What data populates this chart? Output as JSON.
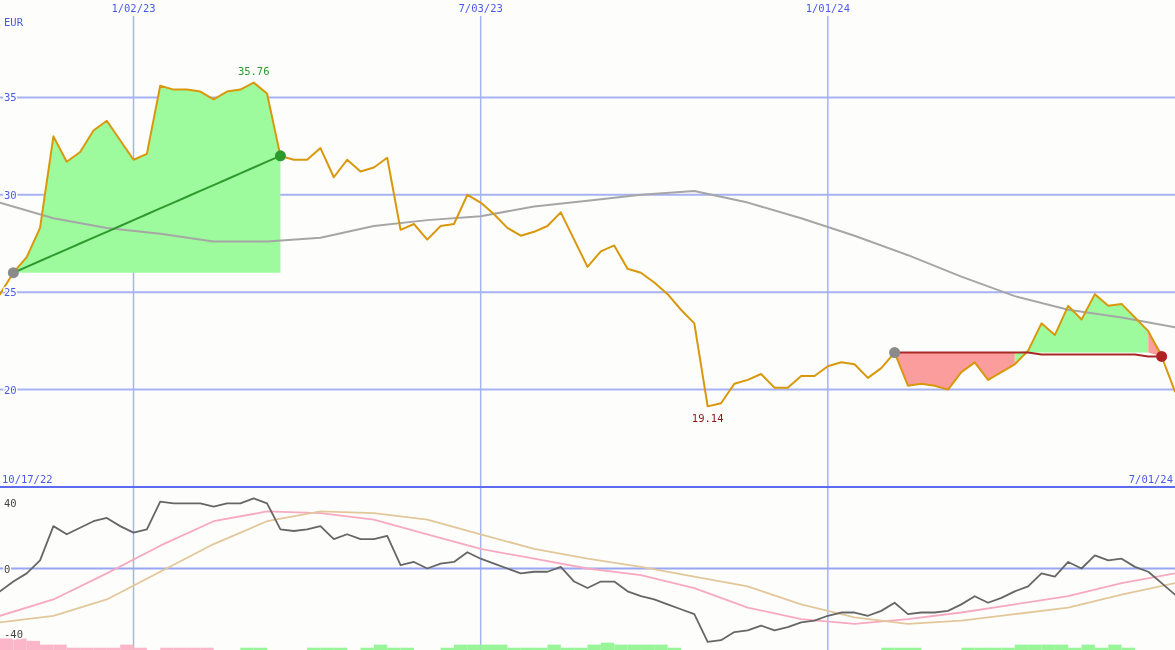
{
  "chart_data": [
    {
      "type": "line",
      "ylabel": "EUR",
      "x": [
        "2022-10-24",
        "2022-10-31",
        "2022-11-07",
        "2022-11-14",
        "2022-11-21",
        "2022-11-28",
        "2022-12-05",
        "2022-12-12",
        "2022-12-19",
        "2022-12-26",
        "2023-01-02",
        "2023-01-09",
        "2023-01-16",
        "2023-01-23",
        "2023-01-30",
        "2023-02-06",
        "2023-02-13",
        "2023-02-20",
        "2023-02-27",
        "2023-03-06",
        "2023-03-13",
        "2023-03-20",
        "2023-03-27",
        "2023-04-03",
        "2023-04-10",
        "2023-04-17",
        "2023-04-24",
        "2023-05-01",
        "2023-05-08",
        "2023-05-15",
        "2023-05-22",
        "2023-05-29",
        "2023-06-05",
        "2023-06-12",
        "2023-06-19",
        "2023-06-26",
        "2023-07-03",
        "2023-07-10",
        "2023-07-17",
        "2023-07-24",
        "2023-07-31",
        "2023-08-07",
        "2023-08-14",
        "2023-08-21",
        "2023-08-28",
        "2023-09-04",
        "2023-09-11",
        "2023-09-18",
        "2023-09-25",
        "2023-10-02",
        "2023-10-09",
        "2023-10-16",
        "2023-10-23",
        "2023-10-30",
        "2023-11-06",
        "2023-11-13",
        "2023-11-20",
        "2023-11-27",
        "2023-12-04",
        "2023-12-11",
        "2023-12-18",
        "2023-12-25",
        "2024-01-01",
        "2024-01-08",
        "2024-01-15",
        "2024-01-22",
        "2024-01-29",
        "2024-02-05",
        "2024-02-12",
        "2024-02-19",
        "2024-02-26",
        "2024-03-04",
        "2024-03-11",
        "2024-03-18",
        "2024-03-25",
        "2024-04-01",
        "2024-04-08",
        "2024-04-15",
        "2024-04-22",
        "2024-04-29",
        "2024-05-06",
        "2024-05-13",
        "2024-05-20",
        "2024-05-27",
        "2024-06-03",
        "2024-06-10",
        "2024-06-17",
        "2024-06-24",
        "2024-07-01"
      ],
      "xlim": [
        "2022-10-24",
        "2024-07-01"
      ],
      "ylim": [
        15,
        40
      ],
      "xticks": [
        {
          "value": "2023-01-02",
          "label": "1/02/23"
        },
        {
          "value": "2023-07-03",
          "label": "7/03/23"
        },
        {
          "value": "2024-01-01",
          "label": "1/01/24"
        }
      ],
      "yticks": [
        20,
        25,
        30,
        35
      ],
      "grid": true,
      "annotations": [
        {
          "text": "35.76",
          "x": "2023-03-06",
          "y": 35.76
        },
        {
          "text": "19.14",
          "x": "2023-10-30",
          "y": 19.14
        },
        "10/17/22",
        "7/01/24"
      ],
      "series": [
        {
          "type": "line",
          "color": "#a6a6a6",
          "x": [
            "2022-10-24",
            "2022-11-21",
            "2022-12-19",
            "2023-01-16",
            "2023-02-13",
            "2023-03-13",
            "2023-04-10",
            "2023-05-08",
            "2023-06-05",
            "2023-07-03",
            "2023-07-31",
            "2023-08-28",
            "2023-09-25",
            "2023-10-23",
            "2023-11-20",
            "2023-12-18",
            "2024-01-15",
            "2024-02-12",
            "2024-03-11",
            "2024-04-08",
            "2024-05-06",
            "2024-06-03",
            "2024-07-01"
          ],
          "values": [
            29.6,
            28.8,
            28.3,
            28.0,
            27.6,
            27.6,
            27.8,
            28.4,
            28.7,
            28.9,
            29.4,
            29.7,
            30.0,
            30.2,
            29.6,
            28.8,
            27.9,
            26.9,
            25.8,
            24.8,
            24.1,
            23.7,
            23.2
          ]
        },
        {
          "type": "line",
          "color": "#d9980b",
          "values": [
            24.9,
            26.0,
            26.8,
            28.3,
            33.0,
            31.7,
            32.2,
            33.3,
            33.8,
            32.8,
            31.8,
            32.1,
            35.6,
            35.4,
            35.4,
            35.3,
            34.9,
            35.3,
            35.4,
            35.76,
            35.2,
            32.0,
            31.8,
            31.8,
            32.4,
            30.9,
            31.8,
            31.2,
            31.4,
            31.9,
            28.2,
            28.5,
            27.7,
            28.4,
            28.5,
            30.0,
            29.6,
            29.0,
            28.3,
            27.9,
            28.1,
            28.4,
            29.1,
            27.7,
            26.3,
            27.1,
            27.4,
            26.2,
            26.0,
            25.5,
            24.9,
            24.1,
            23.4,
            19.14,
            19.3,
            20.3,
            20.5,
            20.8,
            20.1,
            20.1,
            20.7,
            20.7,
            21.2,
            21.4,
            21.3,
            20.6,
            21.1,
            21.9,
            20.2,
            20.3,
            20.2,
            20.0,
            20.9,
            21.4,
            20.5,
            20.9,
            21.3,
            22.0,
            23.4,
            22.8,
            24.3,
            23.6,
            24.9,
            24.3,
            24.4,
            23.7,
            23.0,
            21.7,
            19.9
          ]
        },
        {
          "type": "line",
          "color": "#2e9a2e",
          "x": [
            "2022-10-31",
            "2022-11-07",
            "2022-11-14",
            "2022-11-21",
            "2022-11-28",
            "2022-12-05",
            "2022-12-12",
            "2022-12-19",
            "2022-12-26",
            "2023-01-02",
            "2023-01-09",
            "2023-01-16",
            "2023-01-23",
            "2023-01-30",
            "2023-02-06",
            "2023-02-13",
            "2023-02-20",
            "2023-02-27",
            "2023-03-06",
            "2023-03-13",
            "2023-03-20",
            "2023-03-27",
            "2024-04-08",
            "2024-04-15",
            "2024-04-22",
            "2024-04-29",
            "2024-05-06",
            "2024-05-13",
            "2024-05-20",
            "2024-05-27",
            "2024-06-03",
            "2024-06-10",
            "2024-06-17"
          ],
          "values": [
            26.0,
            26.3,
            26.6,
            26.9,
            27.2,
            27.5,
            27.8,
            28.1,
            28.4,
            28.7,
            29.0,
            29.3,
            29.6,
            29.9,
            30.2,
            30.5,
            30.8,
            31.1,
            31.4,
            31.7,
            32.0,
            null,
            null,
            null,
            null,
            null,
            null,
            null,
            null,
            null,
            null,
            null,
            null
          ],
          "lower": [
            26.0,
            26.0,
            26.0,
            26.0,
            26.0,
            26.0,
            26.0,
            26.0,
            26.0,
            26.0,
            26.0,
            26.0,
            26.0,
            26.0,
            26.0,
            26.0,
            26.0,
            26.0,
            26.0,
            26.0,
            26.0,
            null,
            21.3,
            21.9,
            21.9,
            21.9,
            21.9,
            21.9,
            21.9,
            21.9,
            21.9,
            21.9,
            21.9
          ],
          "upper": [
            26.0,
            26.8,
            28.3,
            33.0,
            31.7,
            32.2,
            33.3,
            33.8,
            32.8,
            31.8,
            32.1,
            35.6,
            35.4,
            35.4,
            35.3,
            34.9,
            35.3,
            35.4,
            35.76,
            35.2,
            32.0,
            null,
            21.9,
            22.0,
            23.4,
            22.8,
            24.3,
            23.6,
            24.9,
            24.3,
            24.4,
            23.7,
            23.0
          ]
        },
        {
          "type": "line",
          "color": "#a82828",
          "x": [
            "2024-02-05",
            "2024-02-12",
            "2024-02-19",
            "2024-02-26",
            "2024-03-04",
            "2024-03-11",
            "2024-03-18",
            "2024-03-25",
            "2024-04-01",
            "2024-04-08",
            "2024-04-15",
            "2024-04-22",
            "2024-04-29",
            "2024-05-06",
            "2024-05-13",
            "2024-05-20",
            "2024-05-27",
            "2024-06-03",
            "2024-06-10",
            "2024-06-17",
            "2024-06-24"
          ],
          "values": [
            21.9,
            21.9,
            21.9,
            21.9,
            21.9,
            21.9,
            21.9,
            21.9,
            21.9,
            21.9,
            21.9,
            21.8,
            21.8,
            21.8,
            21.8,
            21.8,
            21.8,
            21.8,
            21.8,
            21.7,
            21.7
          ],
          "lower": [
            21.9,
            20.2,
            20.3,
            20.2,
            20.0,
            20.9,
            21.4,
            20.5,
            20.9,
            21.3,
            null,
            null,
            null,
            null,
            null,
            null,
            null,
            null,
            null,
            21.9,
            21.7
          ],
          "upper": [
            21.9,
            21.9,
            21.9,
            21.9,
            21.9,
            21.9,
            21.9,
            21.9,
            21.9,
            21.9,
            null,
            null,
            null,
            null,
            null,
            null,
            null,
            null,
            null,
            23.0,
            21.9
          ]
        },
        {
          "type": "scatter",
          "marker": "circle",
          "x": [
            "2022-10-31",
            "2023-03-20",
            "2024-02-05",
            "2024-06-24"
          ],
          "values": [
            26.0,
            32.0,
            21.9,
            21.7
          ],
          "colors": [
            "#8a8a8a",
            "#2c9a2c",
            "#8a8a8a",
            "#b02222"
          ]
        }
      ]
    },
    {
      "type": "line",
      "x": [
        "2022-10-24",
        "2022-10-31",
        "2022-11-07",
        "2022-11-14",
        "2022-11-21",
        "2022-11-28",
        "2022-12-05",
        "2022-12-12",
        "2022-12-19",
        "2022-12-26",
        "2023-01-02",
        "2023-01-09",
        "2023-01-16",
        "2023-01-23",
        "2023-01-30",
        "2023-02-06",
        "2023-02-13",
        "2023-02-20",
        "2023-02-27",
        "2023-03-06",
        "2023-03-13",
        "2023-03-20",
        "2023-03-27",
        "2023-04-03",
        "2023-04-10",
        "2023-04-17",
        "2023-04-24",
        "2023-05-01",
        "2023-05-08",
        "2023-05-15",
        "2023-05-22",
        "2023-05-29",
        "2023-06-05",
        "2023-06-12",
        "2023-06-19",
        "2023-06-26",
        "2023-07-03",
        "2023-07-10",
        "2023-07-17",
        "2023-07-24",
        "2023-07-31",
        "2023-08-07",
        "2023-08-14",
        "2023-08-21",
        "2023-08-28",
        "2023-09-04",
        "2023-09-11",
        "2023-09-18",
        "2023-09-25",
        "2023-10-02",
        "2023-10-09",
        "2023-10-16",
        "2023-10-23",
        "2023-10-30",
        "2023-11-06",
        "2023-11-13",
        "2023-11-20",
        "2023-11-27",
        "2023-12-04",
        "2023-12-11",
        "2023-12-18",
        "2023-12-25",
        "2024-01-01",
        "2024-01-08",
        "2024-01-15",
        "2024-01-22",
        "2024-01-29",
        "2024-02-05",
        "2024-02-12",
        "2024-02-19",
        "2024-02-26",
        "2024-03-04",
        "2024-03-11",
        "2024-03-18",
        "2024-03-25",
        "2024-04-01",
        "2024-04-08",
        "2024-04-15",
        "2024-04-22",
        "2024-04-29",
        "2024-05-06",
        "2024-05-13",
        "2024-05-20",
        "2024-05-27",
        "2024-06-03",
        "2024-06-10",
        "2024-06-17",
        "2024-06-24",
        "2024-07-01"
      ],
      "xlim": [
        "2022-10-24",
        "2024-07-01"
      ],
      "ylim": [
        -50,
        50
      ],
      "xticks": [
        {
          "value": "2023-01-02",
          "label": null
        },
        {
          "value": "2023-07-03",
          "label": null
        },
        {
          "value": "2024-01-01",
          "label": null
        }
      ],
      "yticks": [
        -40,
        0,
        40
      ],
      "grid": "x",
      "tick_labels": "y",
      "ref_lines": [
        {
          "axis": "y",
          "value": 0,
          "color": "#9aa6f2"
        }
      ],
      "series": [
        {
          "type": "bar",
          "x": [
            "2022-10-27T12:00",
            "2022-11-03T12:00",
            "2022-11-10T12:00",
            "2022-11-17T12:00",
            "2022-11-24T12:00",
            "2022-12-01T12:00",
            "2022-12-08T12:00",
            "2022-12-15T12:00",
            "2022-12-22T12:00",
            "2022-12-29T12:00",
            "2023-01-05T12:00",
            "2023-01-19T12:00",
            "2023-01-26T12:00",
            "2023-02-02T12:00",
            "2023-02-09T12:00",
            "2023-03-02T12:00",
            "2023-03-09T12:00",
            "2023-04-06T12:00",
            "2023-04-13T12:00",
            "2023-04-20T12:00",
            "2023-05-04T12:00",
            "2023-05-11T12:00",
            "2023-05-18T12:00",
            "2023-05-25T12:00",
            "2023-06-15T12:00",
            "2023-06-22T12:00",
            "2023-06-29T12:00",
            "2023-07-06T12:00",
            "2023-07-13T12:00",
            "2023-07-20T12:00",
            "2023-07-27T12:00",
            "2023-08-03T12:00",
            "2023-08-10T12:00",
            "2023-08-17T12:00",
            "2023-08-24T12:00",
            "2023-08-31T12:00",
            "2023-09-07T12:00",
            "2023-09-14T12:00",
            "2023-09-21T12:00",
            "2023-09-28T12:00",
            "2023-10-05T12:00",
            "2023-10-12T12:00",
            "2024-02-01T12:00",
            "2024-02-08T12:00",
            "2024-02-15T12:00",
            "2024-03-14T12:00",
            "2024-03-21T12:00",
            "2024-03-28T12:00",
            "2024-04-04T12:00",
            "2024-04-11T12:00",
            "2024-04-18T12:00",
            "2024-04-25T12:00",
            "2024-05-02T12:00",
            "2024-05-09T12:00",
            "2024-05-16T12:00",
            "2024-05-23T12:00",
            "2024-05-30T12:00",
            "2024-06-06T12:00"
          ],
          "values": [
            7.1,
            7.1,
            5.6,
            3.3,
            3.3,
            1.4,
            1.4,
            1.4,
            1.4,
            3.3,
            1.4,
            1.4,
            1.4,
            1.4,
            1.4,
            1.4,
            1.4,
            1.4,
            1.4,
            1.4,
            1.4,
            3.3,
            1.4,
            1.4,
            1.4,
            3.3,
            3.3,
            3.3,
            3.3,
            1.4,
            1.4,
            1.4,
            3.3,
            1.4,
            1.4,
            3.3,
            4.5,
            3.3,
            3.3,
            3.3,
            3.3,
            1.4,
            1.4,
            1.4,
            1.4,
            1.4,
            1.4,
            1.4,
            1.4,
            3.3,
            3.3,
            3.3,
            3.3,
            1.4,
            3.3,
            1.4,
            3.3,
            1.4
          ],
          "base": [
            -50,
            -50,
            -50,
            -50,
            -50,
            -50,
            -50,
            -50,
            -50,
            -50,
            -50,
            -50,
            -50,
            -50,
            -50,
            -50,
            -50,
            -50,
            -50,
            -50,
            -50,
            -50,
            -50,
            -50,
            -50,
            -50,
            -50,
            -50,
            -50,
            -50,
            -50,
            -50,
            -50,
            -50,
            -50,
            -50,
            -50,
            -50,
            -50,
            -50,
            -50,
            -50,
            -50,
            -50,
            -50,
            -50,
            -50,
            -50,
            -50,
            -50,
            -50,
            -50,
            -50,
            -50,
            -50,
            -50,
            -50,
            -50
          ],
          "colors": [
            "#fbb6ca",
            "#fbb6ca",
            "#fbb6ca",
            "#fbb6ca",
            "#fbb6ca",
            "#fbb6ca",
            "#fbb6ca",
            "#fbb6ca",
            "#fbb6ca",
            "#fbb6ca",
            "#fbb6ca",
            "#fbb6ca",
            "#fbb6ca",
            "#fbb6ca",
            "#fbb6ca",
            "#98f598",
            "#98f598",
            "#98f598",
            "#98f598",
            "#98f598",
            "#98f598",
            "#98f598",
            "#98f598",
            "#98f598",
            "#98f598",
            "#98f598",
            "#98f598",
            "#98f598",
            "#98f598",
            "#98f598",
            "#98f598",
            "#98f598",
            "#98f598",
            "#98f598",
            "#98f598",
            "#98f598",
            "#98f598",
            "#98f598",
            "#98f598",
            "#98f598",
            "#98f598",
            "#98f598",
            "#98f598",
            "#98f598",
            "#98f598",
            "#98f598",
            "#98f598",
            "#98f598",
            "#98f598",
            "#98f598",
            "#98f598",
            "#98f598",
            "#98f598",
            "#98f598",
            "#98f598",
            "#98f598",
            "#98f598",
            "#98f598"
          ]
        },
        {
          "color": "#f7a8c2",
          "x": [
            "2022-10-24",
            "2022-11-21",
            "2022-12-19",
            "2023-01-16",
            "2023-02-13",
            "2023-03-13",
            "2023-04-10",
            "2023-05-08",
            "2023-06-05",
            "2023-07-03",
            "2023-07-31",
            "2023-08-28",
            "2023-09-25",
            "2023-10-23",
            "2023-11-20",
            "2023-12-18",
            "2024-01-15",
            "2024-02-12",
            "2024-03-11",
            "2024-04-08",
            "2024-05-06",
            "2024-06-03",
            "2024-07-01"
          ],
          "values": [
            -29,
            -19,
            -3,
            14,
            29,
            35,
            34,
            30,
            21,
            12,
            6,
            0,
            -4,
            -12,
            -24,
            -31,
            -34,
            -31,
            -27,
            -22,
            -17,
            -9,
            -3
          ]
        },
        {
          "color": "#e2c79b",
          "x": [
            "2022-10-24",
            "2022-11-21",
            "2022-12-19",
            "2023-01-16",
            "2023-02-13",
            "2023-03-13",
            "2023-04-10",
            "2023-05-08",
            "2023-06-05",
            "2023-07-03",
            "2023-07-31",
            "2023-08-28",
            "2023-09-25",
            "2023-10-23",
            "2023-11-20",
            "2023-12-18",
            "2024-01-15",
            "2024-02-12",
            "2024-03-11",
            "2024-04-08",
            "2024-05-06",
            "2024-06-03",
            "2024-07-01"
          ],
          "values": [
            -33,
            -29,
            -19,
            -2,
            15,
            29,
            35,
            34,
            30,
            21,
            12,
            6,
            1,
            -5,
            -11,
            -22,
            -30,
            -34,
            -32,
            -28,
            -24,
            -16,
            -9
          ]
        },
        {
          "color": "#666666",
          "values": [
            -14,
            -8,
            -3,
            5,
            26,
            21,
            25,
            29,
            31,
            26,
            22,
            24,
            41,
            40,
            40,
            40,
            38,
            40,
            40,
            43,
            40,
            24,
            23,
            24,
            26,
            18,
            21,
            18,
            18,
            20,
            2,
            4,
            0,
            3,
            4,
            10,
            6,
            3,
            0,
            -3,
            -2,
            -2,
            1,
            -8,
            -12,
            -8,
            -8,
            -14,
            -17,
            -19,
            -22,
            -25,
            -28,
            -45,
            -44,
            -39,
            -38,
            -35,
            -38,
            -36,
            -33,
            -32,
            -29,
            -27,
            -27,
            -29,
            -26,
            -21,
            -28,
            -27,
            -27,
            -26,
            -22,
            -17,
            -21,
            -18,
            -14,
            -11,
            -3,
            -5,
            4,
            0,
            8,
            5,
            6,
            1,
            -2,
            -9,
            -16
          ]
        }
      ]
    }
  ]
}
